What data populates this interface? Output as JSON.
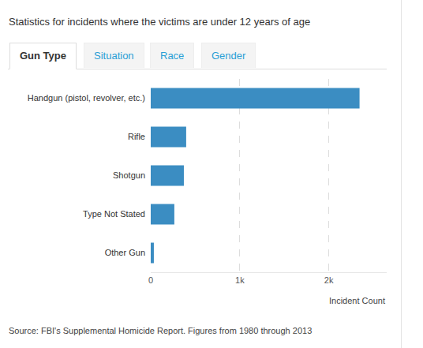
{
  "tabs": [
    {
      "label": "Gun Type",
      "active": true
    },
    {
      "label": "Situation",
      "active": false
    },
    {
      "label": "Race",
      "active": false
    },
    {
      "label": "Gender",
      "active": false
    }
  ],
  "chart_data": {
    "type": "bar",
    "orientation": "horizontal",
    "title": "Statistics for incidents where the victims are under 12 years of age",
    "categories": [
      "Handgun (pistol, revolver, etc.)",
      "Rifle",
      "Shotgun",
      "Type Not Stated",
      "Other Gun"
    ],
    "values": [
      2345,
      398,
      372,
      265,
      35
    ],
    "color": "#3b8dc2",
    "xlabel": "Incident Count",
    "xlim": [
      0,
      2650
    ],
    "xticks": [
      0,
      {
        "value": 1000,
        "label": "1k"
      },
      {
        "value": 2000,
        "label": "2k"
      }
    ],
    "grid": true,
    "annotations": [
      "Source: FBI's Supplemental Homicide Report. Figures from 1980 through 2013"
    ]
  }
}
